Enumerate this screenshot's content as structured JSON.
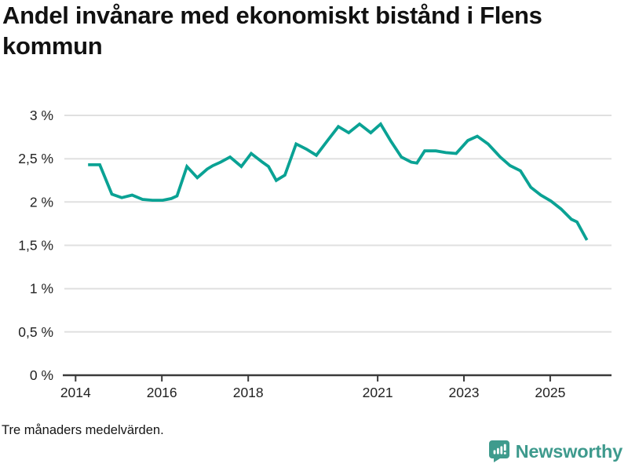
{
  "title": "Andel invånare med ekonomiskt bistånd i Flens kommun",
  "title_lines": [
    "Andel invånare med ekonomiskt bistånd i Flens",
    "kommun"
  ],
  "footnote": "Tre månaders medelvärden.",
  "brand": {
    "name": "Newsworthy",
    "color": "#3e9a8d",
    "icon": "bar-chart-speech-bubble-icon"
  },
  "colors": {
    "line": "#0aa294",
    "grid": "#e0e0e0",
    "axis": "#3a3a3a",
    "text": "#222222",
    "title": "#111111"
  },
  "chart_data": {
    "type": "line",
    "title": "Andel invånare med ekonomiskt bistånd i Flens kommun",
    "xlabel": "",
    "ylabel": "",
    "grid": true,
    "legend": false,
    "xlim": [
      2013.74,
      2026.42
    ],
    "ylim": [
      0,
      3
    ],
    "x_ticks": {
      "values": [
        2014,
        2016,
        2018,
        2021,
        2023,
        2025
      ],
      "labels": [
        "2014",
        "2016",
        "2018",
        "2021",
        "2023",
        "2025"
      ]
    },
    "y_ticks": {
      "values": [
        0,
        0.5,
        1,
        1.5,
        2,
        2.5,
        3
      ],
      "labels": [
        "0 %",
        "0,5 %",
        "1 %",
        "1,5 %",
        "2 %",
        "2,5 %",
        "3 %"
      ]
    },
    "series": [
      {
        "name": "Flens kommun",
        "color": "#0aa294",
        "x": [
          2014.29,
          2014.56,
          2014.84,
          2015.07,
          2015.31,
          2015.55,
          2015.78,
          2016.02,
          2016.22,
          2016.35,
          2016.58,
          2016.82,
          2017.05,
          2017.18,
          2017.36,
          2017.58,
          2017.84,
          2018.07,
          2018.33,
          2018.47,
          2018.65,
          2018.85,
          2019.11,
          2019.35,
          2019.58,
          2019.84,
          2020.09,
          2020.33,
          2020.58,
          2020.84,
          2021.07,
          2021.31,
          2021.55,
          2021.78,
          2021.91,
          2022.09,
          2022.35,
          2022.58,
          2022.82,
          2023.09,
          2023.31,
          2023.56,
          2023.84,
          2024.07,
          2024.31,
          2024.55,
          2024.78,
          2025.02,
          2025.25,
          2025.49,
          2025.62,
          2025.85
        ],
        "y": [
          2.43,
          2.43,
          2.09,
          2.05,
          2.08,
          2.03,
          2.02,
          2.02,
          2.04,
          2.07,
          2.41,
          2.28,
          2.38,
          2.42,
          2.46,
          2.52,
          2.41,
          2.56,
          2.46,
          2.41,
          2.25,
          2.31,
          2.67,
          2.61,
          2.54,
          2.71,
          2.87,
          2.8,
          2.9,
          2.8,
          2.9,
          2.7,
          2.52,
          2.46,
          2.45,
          2.59,
          2.59,
          2.57,
          2.56,
          2.71,
          2.76,
          2.67,
          2.52,
          2.42,
          2.36,
          2.17,
          2.08,
          2.01,
          1.92,
          1.8,
          1.77,
          1.56
        ]
      }
    ]
  }
}
